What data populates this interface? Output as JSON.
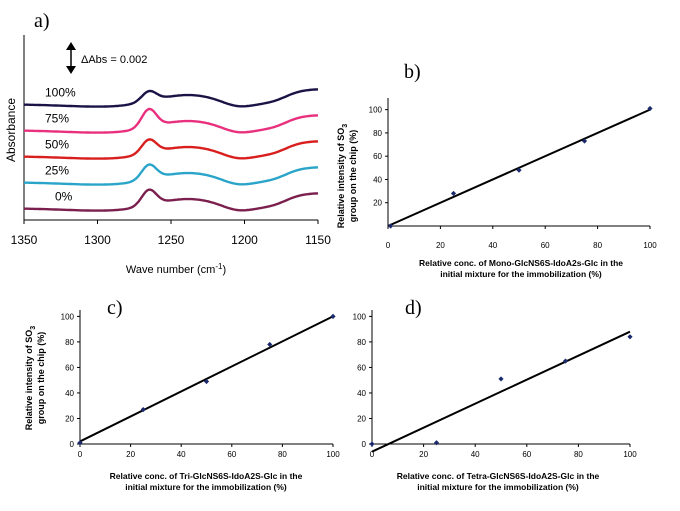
{
  "chart_data": [
    {
      "id": "a",
      "type": "line",
      "panel_label": "a)",
      "xlabel": "Wave number (cm",
      "xlabel_sup": "-1",
      "xlabel_end": ")",
      "ylabel": "Absorbance",
      "xlim": [
        1350,
        1150
      ],
      "x_ticks": [
        "1350",
        "1300",
        "1250",
        "1200",
        "1150"
      ],
      "scale_bar": "ΔAbs = 0.002",
      "grid": false,
      "series": [
        {
          "name": "100%",
          "color": "#1a1446",
          "offset": 4,
          "peak": 0.55
        },
        {
          "name": "75%",
          "color": "#e8307e",
          "offset": 3,
          "peak": 1.0
        },
        {
          "name": "50%",
          "color": "#d91e1e",
          "offset": 2,
          "peak": 0.75
        },
        {
          "name": "25%",
          "color": "#2aa5c9",
          "offset": 1,
          "peak": 0.8
        },
        {
          "name": "0%",
          "color": "#7a1f4e",
          "offset": 0,
          "peak": 0.85
        }
      ]
    },
    {
      "id": "b",
      "type": "scatter",
      "panel_label": "b)",
      "xlabel": "Relative conc. of Mono-GlcNS6S-IdoA2s-Glc in the",
      "xlabel2": "initial mixture for the immobilization (%)",
      "ylabel1": "Relative intensity of SO",
      "ylabel1_sub": "3",
      "ylabel2": "group on the chip (%)",
      "xlim": [
        0,
        100
      ],
      "ylim": [
        0,
        110
      ],
      "x_ticks": [
        "0",
        "20",
        "40",
        "60",
        "80",
        "100"
      ],
      "y_ticks": [
        "20",
        "40",
        "60",
        "80",
        "100"
      ],
      "x": [
        1,
        25,
        50,
        75,
        100
      ],
      "y": [
        0,
        28,
        48,
        73,
        101
      ],
      "fit": {
        "x": [
          0,
          100
        ],
        "y": [
          0,
          100
        ]
      }
    },
    {
      "id": "c",
      "type": "scatter",
      "panel_label": "c)",
      "xlabel": "Relative conc. of Tri-GlcNS6S-IdoA2S-Glc in the",
      "xlabel2": "initial mixture for the immobilization  (%)",
      "ylabel1": "Relative intensity of SO",
      "ylabel1_sub": "3",
      "ylabel2": "group on the chip (%)",
      "xlim": [
        0,
        100
      ],
      "ylim": [
        0,
        105
      ],
      "x_ticks": [
        "0",
        "20",
        "40",
        "60",
        "80",
        "100"
      ],
      "y_ticks": [
        "0",
        "20",
        "40",
        "60",
        "80",
        "100"
      ],
      "x": [
        0,
        25,
        50,
        75,
        100
      ],
      "y": [
        1,
        27,
        49,
        78,
        100
      ],
      "fit": {
        "x": [
          0,
          100
        ],
        "y": [
          2,
          100
        ]
      }
    },
    {
      "id": "d",
      "type": "scatter",
      "panel_label": "d)",
      "xlabel": "Relative conc. of Tetra-GlcNS6S-IdoA2S-Glc in the",
      "xlabel2": "initial mixture for the immobilization  (%)",
      "xlim": [
        0,
        100
      ],
      "ylim": [
        0,
        105
      ],
      "x_ticks": [
        "0",
        "20",
        "40",
        "60",
        "80",
        "100"
      ],
      "y_ticks": [
        "0",
        "20",
        "40",
        "60",
        "80",
        "100"
      ],
      "x": [
        0,
        25,
        50,
        75,
        100
      ],
      "y": [
        0,
        1,
        51,
        65,
        84
      ],
      "fit": {
        "x": [
          0,
          100
        ],
        "y": [
          -6,
          88
        ]
      }
    }
  ]
}
